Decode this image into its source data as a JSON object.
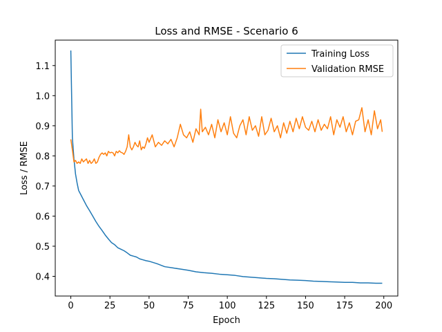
{
  "chart_data": {
    "type": "line",
    "title": "Loss and RMSE - Scenario 6",
    "xlabel": "Epoch",
    "ylabel": "Loss / RMSE",
    "xlim": [
      -9.95,
      208.95
    ],
    "ylim": [
      0.3345,
      1.1845
    ],
    "xticks": [
      0,
      25,
      50,
      75,
      100,
      125,
      150,
      175,
      200
    ],
    "yticks": [
      0.4,
      0.5,
      0.6,
      0.7,
      0.8,
      0.9,
      1.0,
      1.1
    ],
    "grid": false,
    "legend_position": "top-right",
    "series": [
      {
        "name": "Training Loss",
        "color": "#1f77b4",
        "x": [
          0,
          1,
          2,
          3,
          4,
          5,
          6,
          8,
          10,
          12,
          14,
          16,
          18,
          20,
          22,
          24,
          26,
          28,
          30,
          32,
          34,
          36,
          38,
          40,
          42,
          44,
          46,
          48,
          50,
          55,
          60,
          65,
          70,
          75,
          80,
          85,
          90,
          95,
          100,
          105,
          110,
          115,
          120,
          125,
          130,
          135,
          140,
          145,
          150,
          155,
          160,
          165,
          170,
          175,
          180,
          185,
          190,
          195,
          199
        ],
        "values": [
          1.15,
          0.86,
          0.79,
          0.74,
          0.71,
          0.685,
          0.675,
          0.655,
          0.635,
          0.618,
          0.6,
          0.582,
          0.566,
          0.552,
          0.537,
          0.524,
          0.512,
          0.505,
          0.495,
          0.49,
          0.485,
          0.478,
          0.47,
          0.467,
          0.464,
          0.458,
          0.455,
          0.452,
          0.45,
          0.442,
          0.432,
          0.428,
          0.424,
          0.42,
          0.415,
          0.412,
          0.41,
          0.407,
          0.405,
          0.403,
          0.399,
          0.397,
          0.395,
          0.393,
          0.392,
          0.39,
          0.388,
          0.387,
          0.386,
          0.384,
          0.383,
          0.382,
          0.381,
          0.38,
          0.38,
          0.378,
          0.378,
          0.377,
          0.377
        ]
      },
      {
        "name": "Validation RMSE",
        "color": "#ff7f0e",
        "x": [
          0,
          1,
          2,
          3,
          4,
          5,
          6,
          7,
          8,
          9,
          10,
          11,
          12,
          13,
          14,
          15,
          16,
          17,
          18,
          19,
          20,
          21,
          22,
          23,
          24,
          25,
          26,
          27,
          28,
          29,
          30,
          31,
          32,
          33,
          34,
          35,
          36,
          37,
          38,
          39,
          40,
          41,
          42,
          43,
          44,
          45,
          46,
          47,
          48,
          49,
          50,
          52,
          54,
          56,
          58,
          60,
          62,
          64,
          66,
          68,
          70,
          72,
          74,
          76,
          78,
          80,
          82,
          83,
          84,
          86,
          88,
          90,
          92,
          94,
          96,
          98,
          100,
          102,
          104,
          106,
          108,
          110,
          112,
          114,
          116,
          118,
          120,
          122,
          124,
          126,
          128,
          130,
          132,
          134,
          136,
          138,
          140,
          142,
          144,
          146,
          148,
          150,
          152,
          154,
          156,
          158,
          160,
          162,
          164,
          166,
          168,
          170,
          172,
          174,
          176,
          178,
          180,
          182,
          184,
          186,
          188,
          190,
          192,
          194,
          196,
          198,
          199
        ],
        "values": [
          0.855,
          0.82,
          0.78,
          0.785,
          0.775,
          0.78,
          0.775,
          0.79,
          0.78,
          0.785,
          0.79,
          0.775,
          0.785,
          0.775,
          0.78,
          0.79,
          0.775,
          0.78,
          0.795,
          0.805,
          0.81,
          0.805,
          0.81,
          0.8,
          0.815,
          0.81,
          0.812,
          0.81,
          0.8,
          0.815,
          0.81,
          0.817,
          0.812,
          0.81,
          0.805,
          0.815,
          0.83,
          0.87,
          0.83,
          0.82,
          0.83,
          0.845,
          0.835,
          0.83,
          0.85,
          0.82,
          0.83,
          0.825,
          0.84,
          0.86,
          0.845,
          0.87,
          0.83,
          0.845,
          0.835,
          0.85,
          0.84,
          0.855,
          0.83,
          0.86,
          0.905,
          0.87,
          0.86,
          0.88,
          0.845,
          0.89,
          0.87,
          0.955,
          0.88,
          0.895,
          0.87,
          0.905,
          0.86,
          0.92,
          0.88,
          0.91,
          0.87,
          0.93,
          0.875,
          0.86,
          0.9,
          0.92,
          0.87,
          0.93,
          0.885,
          0.9,
          0.865,
          0.93,
          0.87,
          0.885,
          0.925,
          0.88,
          0.9,
          0.86,
          0.91,
          0.875,
          0.915,
          0.88,
          0.925,
          0.89,
          0.93,
          0.895,
          0.885,
          0.915,
          0.88,
          0.92,
          0.885,
          0.905,
          0.89,
          0.93,
          0.87,
          0.92,
          0.895,
          0.93,
          0.88,
          0.91,
          0.87,
          0.915,
          0.92,
          0.96,
          0.88,
          0.92,
          0.87,
          0.95,
          0.89,
          0.92,
          0.88
        ]
      }
    ]
  }
}
